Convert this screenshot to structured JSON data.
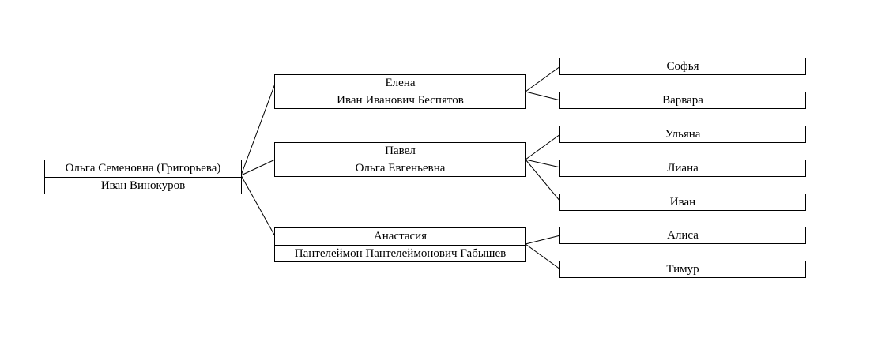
{
  "root": {
    "name": "Ольга Семеновна (Григорьева)",
    "spouse": "Иван Винокуров"
  },
  "children": [
    {
      "name": "Елена",
      "spouse": "Иван Иванович Беспятов",
      "children": [
        "Софья",
        "Варвара"
      ]
    },
    {
      "name": "Павел",
      "spouse": "Ольга Евгеньевна",
      "children": [
        "Ульяна",
        "Лиана",
        "Иван"
      ]
    },
    {
      "name": "Анастасия",
      "spouse": "Пантелеймон Пантелеймонович Габышев",
      "children": [
        "Алиса",
        "Тимур"
      ]
    }
  ]
}
